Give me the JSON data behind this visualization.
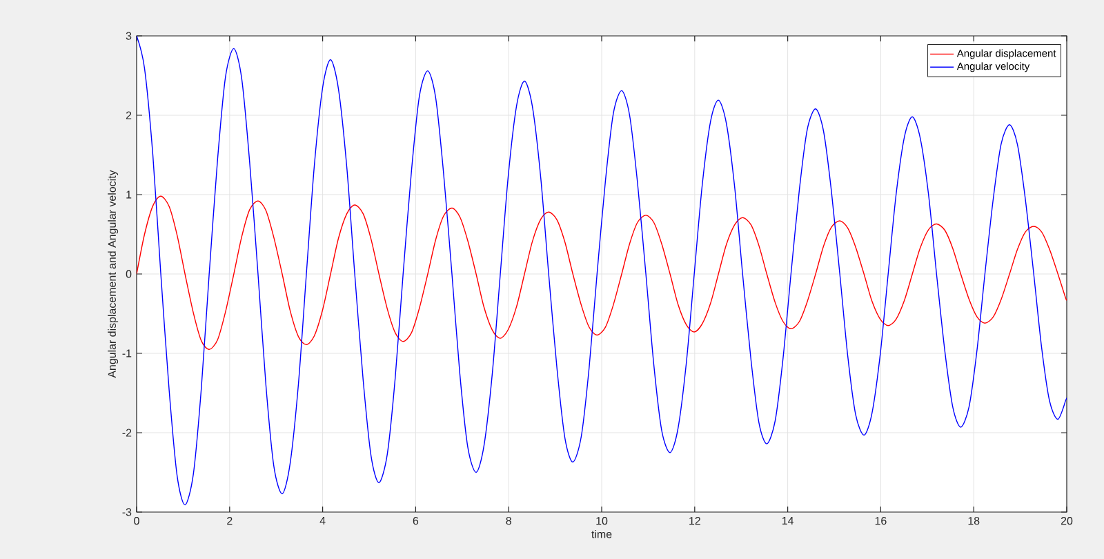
{
  "chart_data": {
    "type": "line",
    "xlabel": "time",
    "ylabel": "Angular displacement and Angular velocity",
    "x": [
      0,
      0.17,
      0.35,
      0.52,
      0.7,
      0.87,
      1.04,
      1.22,
      1.39,
      1.56,
      1.74,
      1.91,
      2.09,
      2.26,
      2.43,
      2.61,
      2.78,
      2.95,
      3.13,
      3.3,
      3.48,
      3.65,
      3.82,
      4,
      4.17,
      4.34,
      4.52,
      4.69,
      4.87,
      5.04,
      5.21,
      5.39,
      5.56,
      5.73,
      5.91,
      6.08,
      6.26,
      6.43,
      6.6,
      6.78,
      6.95,
      7.12,
      7.3,
      7.47,
      7.65,
      7.82,
      7.99,
      8.17,
      8.34,
      8.51,
      8.69,
      8.86,
      9.04,
      9.21,
      9.38,
      9.56,
      9.73,
      9.9,
      10.08,
      10.25,
      10.43,
      10.6,
      10.77,
      10.95,
      11.12,
      11.29,
      11.47,
      11.64,
      11.82,
      11.99,
      12.16,
      12.34,
      12.51,
      12.68,
      12.86,
      13.03,
      13.21,
      13.38,
      13.55,
      13.73,
      13.9,
      14.07,
      14.25,
      14.42,
      14.6,
      14.77,
      14.94,
      15.12,
      15.29,
      15.46,
      15.64,
      15.81,
      15.99,
      16.16,
      16.33,
      16.51,
      16.68,
      16.85,
      17.03,
      17.2,
      17.38,
      17.55,
      17.72,
      17.9,
      18.07,
      18.24,
      18.42,
      18.59,
      18.77,
      18.94,
      19.11,
      19.29,
      19.46,
      19.63,
      19.81,
      19.98,
      20
    ],
    "series": [
      {
        "name": "Angular displacement",
        "color": "#ff0000",
        "values": [
          0,
          0.5,
          0.86,
          0.98,
          0.85,
          0.49,
          0,
          -0.49,
          -0.84,
          -0.95,
          -0.83,
          -0.48,
          0,
          0.47,
          0.81,
          0.92,
          0.8,
          0.46,
          0,
          -0.46,
          -0.79,
          -0.89,
          -0.78,
          -0.45,
          0,
          0.45,
          0.76,
          0.87,
          0.76,
          0.44,
          0,
          -0.44,
          -0.74,
          -0.85,
          -0.74,
          -0.43,
          0,
          0.43,
          0.73,
          0.83,
          0.72,
          0.42,
          0,
          -0.42,
          -0.71,
          -0.81,
          -0.7,
          -0.41,
          0,
          0.41,
          0.69,
          0.78,
          0.68,
          0.4,
          0,
          -0.39,
          -0.67,
          -0.77,
          -0.67,
          -0.39,
          0,
          0.38,
          0.65,
          0.74,
          0.65,
          0.38,
          0,
          -0.38,
          -0.64,
          -0.73,
          -0.63,
          -0.37,
          0,
          0.37,
          0.62,
          0.71,
          0.62,
          0.36,
          0,
          -0.36,
          -0.6,
          -0.69,
          -0.6,
          -0.35,
          0,
          0.35,
          0.59,
          0.67,
          0.58,
          0.34,
          0,
          -0.34,
          -0.57,
          -0.65,
          -0.57,
          -0.33,
          0,
          0.33,
          0.56,
          0.63,
          0.55,
          0.32,
          0,
          -0.32,
          -0.54,
          -0.62,
          -0.54,
          -0.32,
          0,
          0.31,
          0.53,
          0.6,
          0.53,
          0.31,
          0,
          -0.31,
          -0.31
        ]
      },
      {
        "name": "Angular velocity",
        "color": "#0000ff",
        "values": [
          3,
          2.59,
          1.49,
          0,
          -1.47,
          -2.54,
          -2.91,
          -2.52,
          -1.45,
          0,
          1.44,
          2.48,
          2.84,
          2.46,
          1.41,
          0,
          -1.4,
          -2.42,
          -2.77,
          -2.39,
          -1.38,
          0,
          1.36,
          2.35,
          2.7,
          2.33,
          1.34,
          0,
          -1.33,
          -2.29,
          -2.63,
          -2.27,
          -1.31,
          0,
          1.3,
          2.24,
          2.56,
          2.22,
          1.27,
          0,
          -1.26,
          -2.18,
          -2.5,
          -2.16,
          -1.24,
          0,
          1.23,
          2.12,
          2.43,
          2.11,
          1.21,
          0,
          -1.2,
          -2.07,
          -2.37,
          -2.05,
          -1.18,
          0,
          1.17,
          2.02,
          2.31,
          2,
          1.15,
          0,
          -1.14,
          -1.97,
          -2.25,
          -1.95,
          -1.12,
          0,
          1.11,
          1.92,
          2.19,
          1.9,
          1.09,
          0,
          -1.08,
          -1.87,
          -2.14,
          -1.85,
          -1.06,
          0,
          1.06,
          1.82,
          2.08,
          1.8,
          1.04,
          0,
          -1.03,
          -1.77,
          -2.03,
          -1.76,
          -1.01,
          0,
          1,
          1.73,
          1.98,
          1.71,
          0.99,
          0,
          -0.98,
          -1.68,
          -1.93,
          -1.67,
          -0.96,
          0,
          0.95,
          1.64,
          1.88,
          1.63,
          0.94,
          0,
          -0.93,
          -1.6,
          -1.83,
          -1.59,
          -1.56
        ]
      }
    ],
    "xlim": [
      0,
      20
    ],
    "ylim": [
      -3,
      3
    ],
    "xticks": [
      0,
      2,
      4,
      6,
      8,
      10,
      12,
      14,
      16,
      18,
      20
    ],
    "yticks": [
      -3,
      -2,
      -1,
      0,
      1,
      2,
      3
    ],
    "grid": true,
    "legend": "top right",
    "line_style": "solid"
  }
}
